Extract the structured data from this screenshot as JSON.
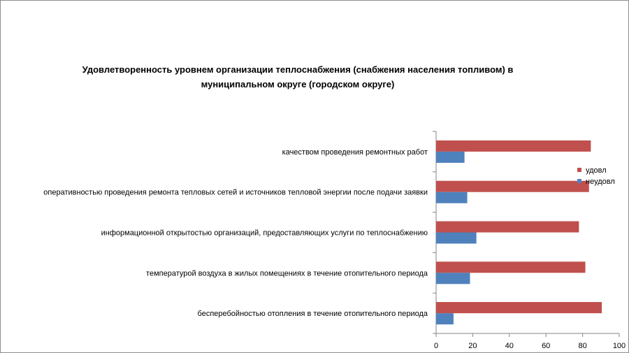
{
  "chart_data": {
    "type": "bar",
    "orientation": "horizontal",
    "title_line1": "Удовлетворенность уровнем организации теплоснабжения (снабжения населения топливом) в",
    "title_line2": "муниципальном округе (городском округе)",
    "categories": [
      "бесперебойностью отопления в течение отопительного периода",
      "температурой воздуха в жилых помещениях в течение отопительного периода",
      "информационной открытостью организаций, предоставляющих услуги по теплоснабжению",
      "оперативностью проведения ремонта тепловых сетей и источников тепловой энергии после подачи заявки",
      "качеством проведения ремонтных работ"
    ],
    "series": [
      {
        "name": "удовл",
        "color": "#c0504d",
        "values": [
          90.5,
          81.5,
          78,
          83.5,
          84.5
        ]
      },
      {
        "name": "неудовл",
        "color": "#4f81bd",
        "values": [
          9.5,
          18.5,
          22,
          17,
          15.5
        ]
      }
    ],
    "xlim": [
      0,
      100
    ],
    "xticks": [
      "0",
      "20",
      "40",
      "60",
      "80",
      "100"
    ],
    "legend_position": "right"
  }
}
